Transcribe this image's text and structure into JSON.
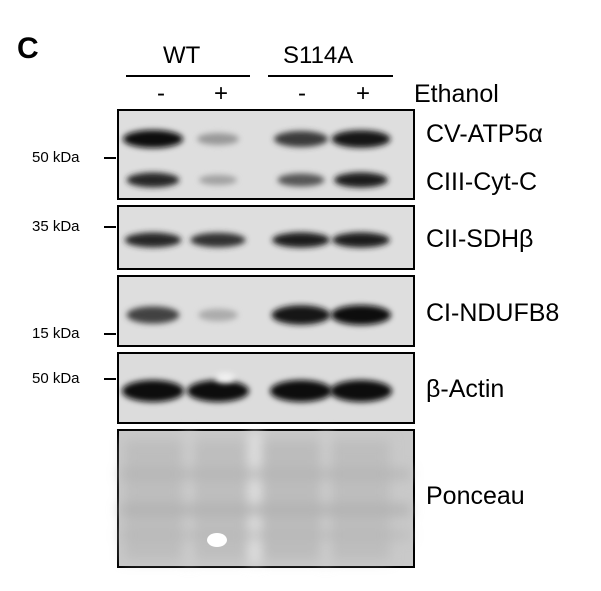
{
  "figure": {
    "panel_letter": "C",
    "groups": [
      {
        "label": "WT"
      },
      {
        "label": "S114A"
      }
    ],
    "condition_label": "Ethanol",
    "lanes": [
      "-",
      "+",
      "-",
      "+"
    ],
    "blots": [
      {
        "id": "cv",
        "labels": [
          "CV-ATP5α",
          "CIII-Cyt-C"
        ],
        "markers": [
          "50 kDa"
        ]
      },
      {
        "id": "cii",
        "labels": [
          "CII-SDHβ"
        ],
        "markers": [
          "35 kDa"
        ]
      },
      {
        "id": "ci",
        "labels": [
          "CI-NDUFB8"
        ],
        "markers": [
          "15 kDa"
        ]
      },
      {
        "id": "actin",
        "labels": [
          "β-Actin"
        ],
        "markers": [
          "50 kDa"
        ]
      },
      {
        "id": "ponceau",
        "labels": [
          "Ponceau"
        ],
        "markers": []
      }
    ],
    "band_intensity": {
      "cv_atp5a": [
        1.0,
        0.25,
        0.75,
        0.95
      ],
      "ciii_cytc": [
        0.85,
        0.2,
        0.6,
        0.9
      ],
      "cii_sdhb": [
        0.85,
        0.8,
        0.9,
        0.9
      ],
      "ci_ndufb8": [
        0.7,
        0.15,
        0.95,
        1.0
      ],
      "b_actin": [
        1.0,
        1.0,
        1.0,
        1.0
      ]
    }
  }
}
